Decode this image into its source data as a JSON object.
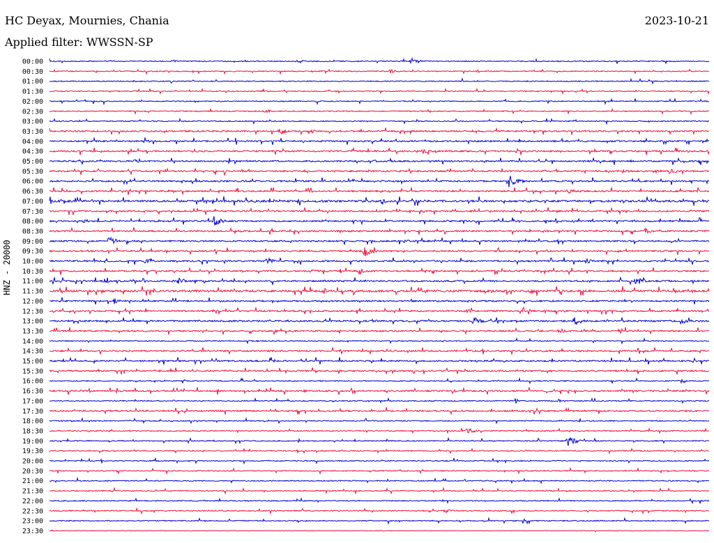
{
  "header": {
    "station": "HC Deyax, Mournies, Chania",
    "filter": "Applied filter: WWSSN-SP",
    "date": "2023-10-21",
    "channel": "HNZ - 20000"
  },
  "chart_data": {
    "type": "line",
    "title": "",
    "xlabel": "",
    "ylabel": "HNZ - 20000",
    "series": [
      {
        "name": "",
        "color": "#0000cc"
      },
      {
        "name": "",
        "color": "#e8103c"
      }
    ],
    "row_labels": [
      "00:00",
      "00:30",
      "01:00",
      "01:30",
      "02:00",
      "02:30",
      "03:00",
      "03:30",
      "04:00",
      "04:30",
      "05:00",
      "05:30",
      "06:00",
      "06:30",
      "07:00",
      "07:30",
      "08:00",
      "08:30",
      "09:00",
      "09:30",
      "10:00",
      "10:30",
      "11:00",
      "11:30",
      "12:00",
      "12:30",
      "13:00",
      "13:30",
      "14:00",
      "14:30",
      "15:00",
      "15:30",
      "16:00",
      "16:30",
      "17:00",
      "17:30",
      "18:00",
      "18:30",
      "19:00",
      "19:30",
      "20:00",
      "20:30",
      "21:00",
      "21:30",
      "22:00",
      "22:30",
      "23:00",
      "23:30"
    ],
    "row_colors": [
      "#0000cc",
      "#e8103c"
    ],
    "row_duration_minutes": 30,
    "noise_level": [
      1,
      1,
      1,
      1,
      1,
      1,
      1,
      2,
      2,
      2,
      2,
      2,
      2,
      2,
      3,
      2,
      2,
      2,
      2,
      2,
      2,
      2,
      2,
      3,
      2,
      2,
      2,
      2,
      1,
      2,
      2,
      2,
      1,
      2,
      1,
      2,
      1,
      1,
      1,
      1,
      1,
      1,
      1,
      1,
      1,
      1,
      1,
      0
    ],
    "events": [
      {
        "row": 0,
        "minute": 16.5,
        "amp": 5
      },
      {
        "row": 0,
        "minute": 11.3,
        "amp": 3
      },
      {
        "row": 0,
        "minute": 5.6,
        "amp": 2
      },
      {
        "row": 1,
        "minute": 15.5,
        "amp": 3
      },
      {
        "row": 1,
        "minute": 19.5,
        "amp": 2
      },
      {
        "row": 5,
        "minute": 9.8,
        "amp": 3
      },
      {
        "row": 7,
        "minute": 10.5,
        "amp": 5
      },
      {
        "row": 7,
        "minute": 11.8,
        "amp": 4
      },
      {
        "row": 8,
        "minute": 4.3,
        "amp": 3
      },
      {
        "row": 9,
        "minute": 17.0,
        "amp": 4
      },
      {
        "row": 10,
        "minute": 14.6,
        "amp": 3
      },
      {
        "row": 10,
        "minute": 3.9,
        "amp": 3
      },
      {
        "row": 11,
        "minute": 28.2,
        "amp": 4
      },
      {
        "row": 11,
        "minute": 26.1,
        "amp": 3
      },
      {
        "row": 12,
        "minute": 20.9,
        "amp": 10
      },
      {
        "row": 13,
        "minute": 23.6,
        "amp": 4
      },
      {
        "row": 13,
        "minute": 11.8,
        "amp": 3
      },
      {
        "row": 14,
        "minute": 15.1,
        "amp": 4
      },
      {
        "row": 14,
        "minute": 11.3,
        "amp": 3
      },
      {
        "row": 14,
        "minute": 0.4,
        "amp": 4
      },
      {
        "row": 16,
        "minute": 7.5,
        "amp": 8
      },
      {
        "row": 16,
        "minute": 1.6,
        "amp": 3
      },
      {
        "row": 17,
        "minute": 27.1,
        "amp": 4
      },
      {
        "row": 18,
        "minute": 2.7,
        "amp": 7
      },
      {
        "row": 18,
        "minute": 16.1,
        "amp": 3
      },
      {
        "row": 19,
        "minute": 14.3,
        "amp": 9
      },
      {
        "row": 20,
        "minute": 4.4,
        "amp": 5
      },
      {
        "row": 20,
        "minute": 9.9,
        "amp": 5
      },
      {
        "row": 20,
        "minute": 24.4,
        "amp": 4
      },
      {
        "row": 21,
        "minute": 14.1,
        "amp": 5
      },
      {
        "row": 21,
        "minute": 11.9,
        "amp": 3
      },
      {
        "row": 22,
        "minute": 5.9,
        "amp": 6
      },
      {
        "row": 22,
        "minute": 26.7,
        "amp": 6
      },
      {
        "row": 22,
        "minute": 2.5,
        "amp": 4
      },
      {
        "row": 23,
        "minute": 12.5,
        "amp": 4
      },
      {
        "row": 23,
        "minute": 21.9,
        "amp": 4
      },
      {
        "row": 24,
        "minute": 2.9,
        "amp": 5
      },
      {
        "row": 25,
        "minute": 19.0,
        "amp": 3
      },
      {
        "row": 26,
        "minute": 19.3,
        "amp": 6
      },
      {
        "row": 26,
        "minute": 23.9,
        "amp": 7
      },
      {
        "row": 26,
        "minute": 14.7,
        "amp": 3
      },
      {
        "row": 26,
        "minute": 28.8,
        "amp": 4
      },
      {
        "row": 27,
        "minute": 23.2,
        "amp": 4
      },
      {
        "row": 32,
        "minute": 28.7,
        "amp": 3
      },
      {
        "row": 33,
        "minute": 18.3,
        "amp": 3
      },
      {
        "row": 33,
        "minute": 22.6,
        "amp": 3
      },
      {
        "row": 34,
        "minute": 23.1,
        "amp": 3
      },
      {
        "row": 36,
        "minute": 14.8,
        "amp": 3
      },
      {
        "row": 37,
        "minute": 19.0,
        "amp": 5
      },
      {
        "row": 38,
        "minute": 23.6,
        "amp": 8
      },
      {
        "row": 45,
        "minute": 18.0,
        "amp": 3
      }
    ]
  }
}
